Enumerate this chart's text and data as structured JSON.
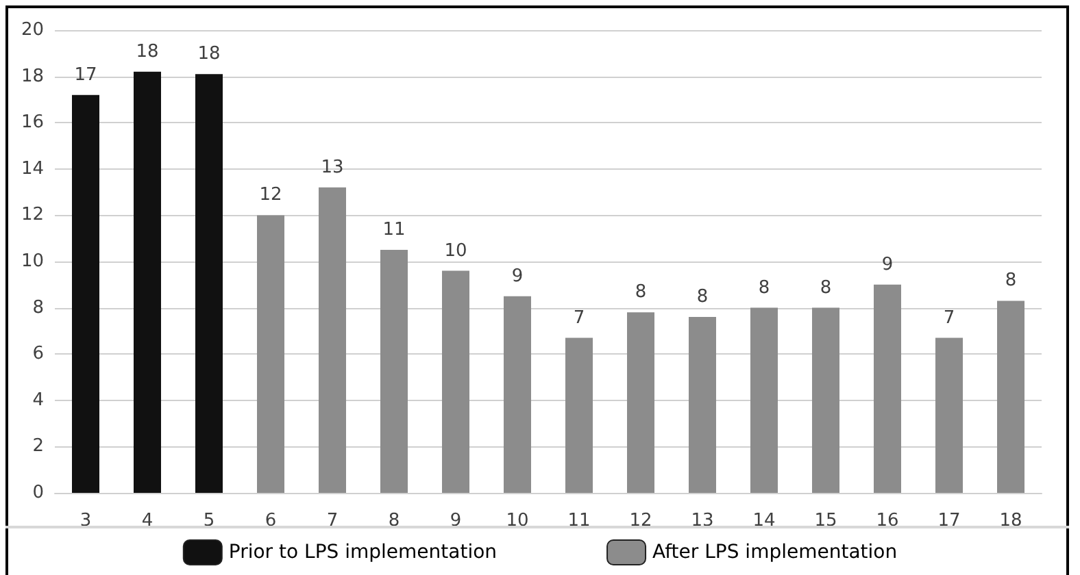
{
  "chart_data": {
    "type": "bar",
    "categories": [
      "3",
      "4",
      "5",
      "6",
      "7",
      "8",
      "9",
      "10",
      "11",
      "12",
      "13",
      "14",
      "15",
      "16",
      "17",
      "18"
    ],
    "series": [
      {
        "name": "Prior to LPS implementation",
        "color": "#111111",
        "values": [
          17.2,
          18.2,
          18.1,
          null,
          null,
          null,
          null,
          null,
          null,
          null,
          null,
          null,
          null,
          null,
          null,
          null
        ],
        "value_labels": [
          "17",
          "18",
          "18",
          null,
          null,
          null,
          null,
          null,
          null,
          null,
          null,
          null,
          null,
          null,
          null,
          null
        ]
      },
      {
        "name": "After LPS implementation",
        "color": "#8c8c8c",
        "values": [
          null,
          null,
          null,
          12.0,
          13.2,
          10.5,
          9.6,
          8.5,
          6.7,
          7.8,
          7.6,
          8.0,
          8.0,
          9.0,
          6.7,
          8.3
        ],
        "value_labels": [
          null,
          null,
          null,
          "12",
          "13",
          "11",
          "10",
          "9",
          "7",
          "8",
          "8",
          "8",
          "8",
          "9",
          "7",
          "8"
        ]
      }
    ],
    "ylim": [
      0,
      20
    ],
    "yticks": [
      0,
      2,
      4,
      6,
      8,
      10,
      12,
      14,
      16,
      18,
      20
    ],
    "grid": "y",
    "legend": "bottom"
  }
}
